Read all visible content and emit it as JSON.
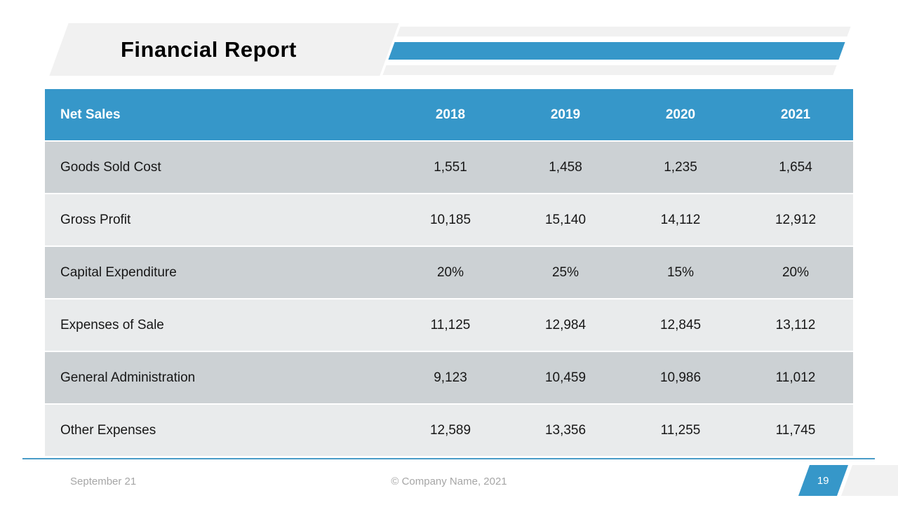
{
  "header": {
    "title": "Financial Report"
  },
  "colors": {
    "accent_blue": "#3697C9",
    "row_dark": "#CCD1D4",
    "row_light": "#E9EBEC",
    "banner_gray": "#F1F1F1",
    "footer_text_gray": "#A6A6A6",
    "header_text": "#FFFFFF",
    "title_text": "#000000"
  },
  "table": {
    "header": {
      "label": "Net Sales",
      "years": [
        "2018",
        "2019",
        "2020",
        "2021"
      ]
    },
    "rows": [
      {
        "label": "Goods Sold Cost",
        "values": [
          "1,551",
          "1,458",
          "1,235",
          "1,654"
        ]
      },
      {
        "label": "Gross Profit",
        "values": [
          "10,185",
          "15,140",
          "14,112",
          "12,912"
        ]
      },
      {
        "label": "Capital Expenditure",
        "values": [
          "20%",
          "25%",
          "15%",
          "20%"
        ]
      },
      {
        "label": "Expenses of Sale",
        "values": [
          "11,125",
          "12,984",
          "12,845",
          "13,112"
        ]
      },
      {
        "label": "General Administration",
        "values": [
          "9,123",
          "10,459",
          "10,986",
          "11,012"
        ]
      },
      {
        "label": "Other Expenses",
        "values": [
          "12,589",
          "13,356",
          "11,255",
          "11,745"
        ]
      }
    ]
  },
  "footer": {
    "date": "September 21",
    "copyright": "© Company Name, 2021",
    "page_number": "19"
  }
}
